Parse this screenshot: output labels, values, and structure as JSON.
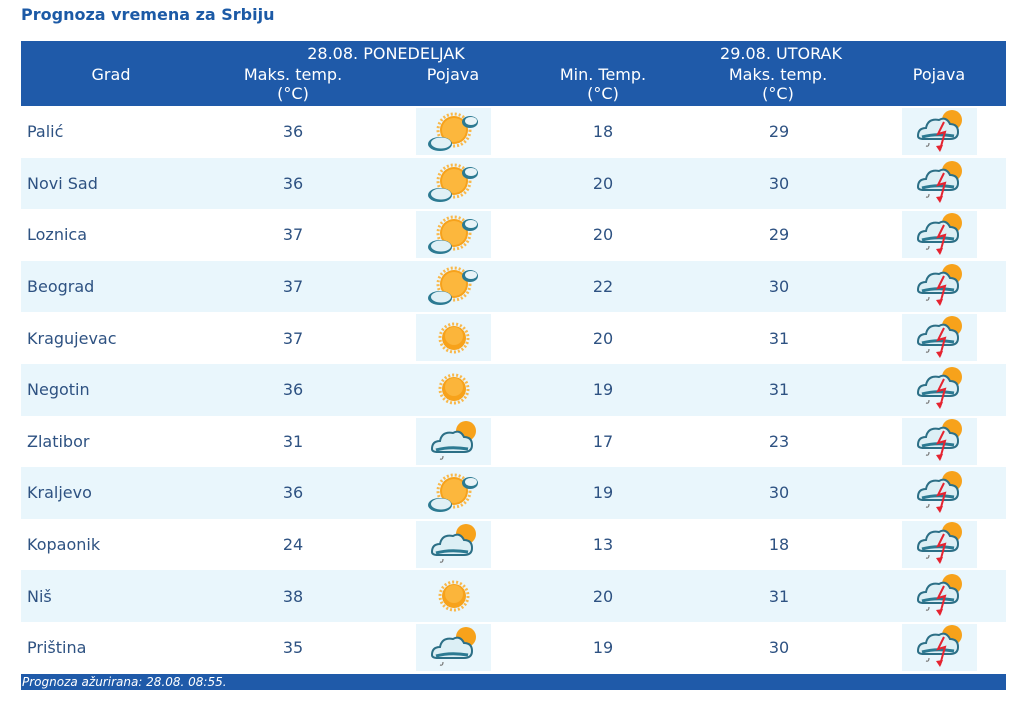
{
  "page": {
    "title": "Prognoza vremena za Srbiju"
  },
  "header": {
    "city_col": "Grad",
    "day1": {
      "date": "28.08. PONEDELJAK",
      "max_label": "Maks. temp.",
      "unit": "(°C)",
      "phenomenon_label": "Pojava"
    },
    "day2": {
      "date": "29.08. UTORAK",
      "min_label": "Min. Temp.",
      "min_unit": "(°C)",
      "max_label": "Maks. temp.",
      "max_unit": "(°C)",
      "phenomenon_label": "Pojava"
    }
  },
  "icons": {
    "partly-cloudy": "sun-with-clouds-icon",
    "sunny": "sun-icon",
    "cloudy-sun-drizzle": "cloud-sun-drizzle-icon",
    "thunderstorm": "thunderstorm-sun-icon"
  },
  "rows": [
    {
      "city": "Palić",
      "d1_max": "36",
      "d1_icon": "partly-cloudy",
      "d2_min": "18",
      "d2_max": "29",
      "d2_icon": "thunderstorm"
    },
    {
      "city": "Novi Sad",
      "d1_max": "36",
      "d1_icon": "partly-cloudy",
      "d2_min": "20",
      "d2_max": "30",
      "d2_icon": "thunderstorm"
    },
    {
      "city": "Loznica",
      "d1_max": "37",
      "d1_icon": "partly-cloudy",
      "d2_min": "20",
      "d2_max": "29",
      "d2_icon": "thunderstorm"
    },
    {
      "city": "Beograd",
      "d1_max": "37",
      "d1_icon": "partly-cloudy",
      "d2_min": "22",
      "d2_max": "30",
      "d2_icon": "thunderstorm"
    },
    {
      "city": "Kragujevac",
      "d1_max": "37",
      "d1_icon": "sunny",
      "d2_min": "20",
      "d2_max": "31",
      "d2_icon": "thunderstorm"
    },
    {
      "city": "Negotin",
      "d1_max": "36",
      "d1_icon": "sunny",
      "d2_min": "19",
      "d2_max": "31",
      "d2_icon": "thunderstorm"
    },
    {
      "city": "Zlatibor",
      "d1_max": "31",
      "d1_icon": "cloudy-sun-drizzle",
      "d2_min": "17",
      "d2_max": "23",
      "d2_icon": "thunderstorm"
    },
    {
      "city": "Kraljevo",
      "d1_max": "36",
      "d1_icon": "partly-cloudy",
      "d2_min": "19",
      "d2_max": "30",
      "d2_icon": "thunderstorm"
    },
    {
      "city": "Kopaonik",
      "d1_max": "24",
      "d1_icon": "cloudy-sun-drizzle",
      "d2_min": "13",
      "d2_max": "18",
      "d2_icon": "thunderstorm"
    },
    {
      "city": "Niš",
      "d1_max": "38",
      "d1_icon": "sunny",
      "d2_min": "20",
      "d2_max": "31",
      "d2_icon": "thunderstorm"
    },
    {
      "city": "Priština",
      "d1_max": "35",
      "d1_icon": "cloudy-sun-drizzle",
      "d2_min": "19",
      "d2_max": "30",
      "d2_icon": "thunderstorm"
    }
  ],
  "footer": {
    "updated": "Prognoza ažurirana:  28.08. 08:55."
  },
  "colors": {
    "header_bg": "#1f5aa9",
    "title": "#1c5aa6",
    "row_alt": "#e9f6fc",
    "text": "#2e5282"
  }
}
